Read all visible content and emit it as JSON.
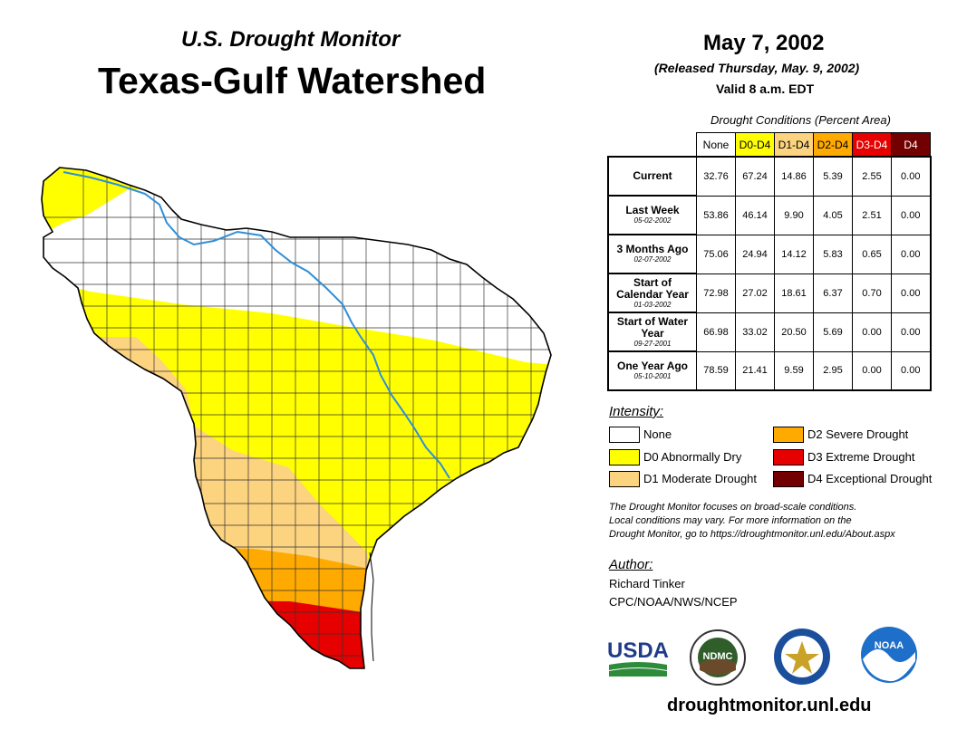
{
  "header": {
    "subtitle": "U.S. Drought Monitor",
    "title": "Texas-Gulf Watershed",
    "date": "May 7, 2002",
    "released": "(Released Thursday, May. 9, 2002)",
    "valid": "Valid 8 a.m. EDT"
  },
  "table": {
    "caption": "Drought Conditions (Percent Area)",
    "columns": [
      "None",
      "D0-D4",
      "D1-D4",
      "D2-D4",
      "D3-D4",
      "D4"
    ],
    "rows": [
      {
        "label": "Current",
        "sublabel": "",
        "values": [
          "32.76",
          "67.24",
          "14.86",
          "5.39",
          "2.55",
          "0.00"
        ]
      },
      {
        "label": "Last Week",
        "sublabel": "05-02-2002",
        "values": [
          "53.86",
          "46.14",
          "9.90",
          "4.05",
          "2.51",
          "0.00"
        ]
      },
      {
        "label": "3 Months Ago",
        "sublabel": "02-07-2002",
        "values": [
          "75.06",
          "24.94",
          "14.12",
          "5.83",
          "0.65",
          "0.00"
        ]
      },
      {
        "label": "Start of Calendar Year",
        "sublabel": "01-03-2002",
        "values": [
          "72.98",
          "27.02",
          "18.61",
          "6.37",
          "0.70",
          "0.00"
        ]
      },
      {
        "label": "Start of Water Year",
        "sublabel": "09-27-2001",
        "values": [
          "66.98",
          "33.02",
          "20.50",
          "5.69",
          "0.00",
          "0.00"
        ]
      },
      {
        "label": "One Year Ago",
        "sublabel": "05-10-2001",
        "values": [
          "78.59",
          "21.41",
          "9.59",
          "2.95",
          "0.00",
          "0.00"
        ]
      }
    ]
  },
  "legend": {
    "title": "Intensity:",
    "items": [
      {
        "label": "None",
        "color": "#ffffff"
      },
      {
        "label": "D0 Abnormally Dry",
        "color": "#ffff00"
      },
      {
        "label": "D1 Moderate Drought",
        "color": "#fcd37f"
      },
      {
        "label": "D2 Severe Drought",
        "color": "#ffaa00"
      },
      {
        "label": "D3 Extreme Drought",
        "color": "#e60000"
      },
      {
        "label": "D4 Exceptional Drought",
        "color": "#730000"
      }
    ]
  },
  "note": {
    "line1": "The Drought Monitor focuses on broad-scale conditions.",
    "line2": "Local conditions may vary. For more information on the",
    "line3": "Drought Monitor, go to https://droughtmonitor.unl.edu/About.aspx"
  },
  "author": {
    "title": "Author:",
    "name": "Richard Tinker",
    "org": "CPC/NOAA/NWS/NCEP"
  },
  "logos": {
    "usda": "USDA",
    "ndmc": "NDMC",
    "noaa": "NOAA"
  },
  "footer": {
    "url": "droughtmonitor.unl.edu"
  },
  "colors": {
    "none": "#ffffff",
    "d0": "#ffff00",
    "d1": "#fcd37f",
    "d2": "#ffaa00",
    "d3": "#e60000",
    "d4": "#730000",
    "river": "#2f8fd8"
  }
}
